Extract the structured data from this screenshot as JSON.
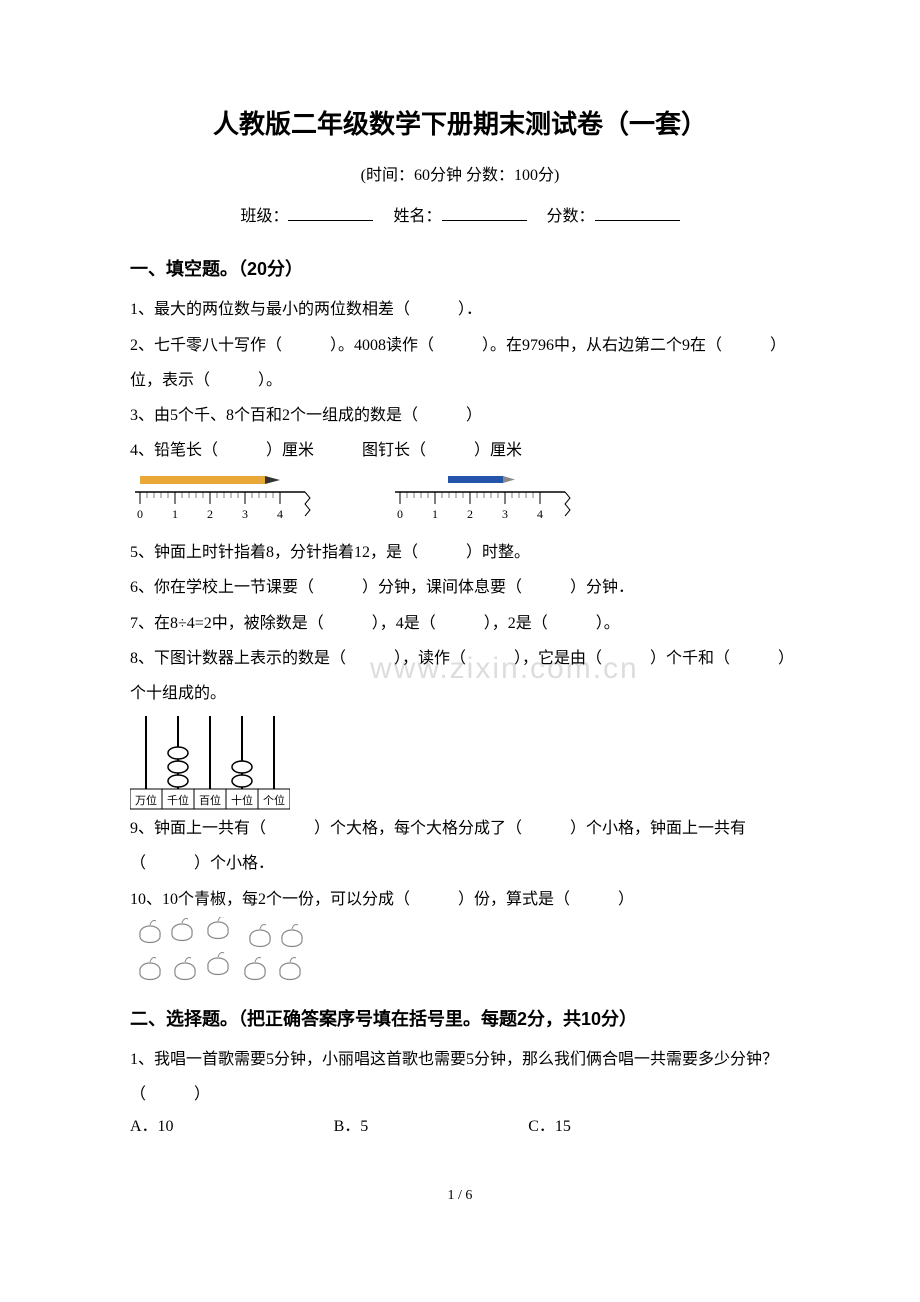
{
  "title": "人教版二年级数学下册期末测试卷（一套）",
  "subtitle": "(时间：60分钟    分数：100分)",
  "info": {
    "class_label": "班级：",
    "name_label": "姓名：",
    "score_label": "分数："
  },
  "section1": {
    "header": "一、填空题。（20分）",
    "q1": "1、最大的两位数与最小的两位数相差（　　　）．",
    "q2": "2、七千零八十写作（　　　）。4008读作（　　　）。在9796中，从右边第二个9在（　　　）位，表示（　　　）。",
    "q3": "3、由5个千、8个百和2个一组成的数是（　　　）",
    "q4": "4、铅笔长（　　　）厘米　　　图钉长（　　　）厘米",
    "q5": "5、钟面上时针指着8，分针指着12，是（　　　）时整。",
    "q6": "6、你在学校上一节课要（　　　）分钟，课间体息要（　　　）分钟．",
    "q7": "7、在8÷4=2中，被除数是（　　　），4是（　　　），2是（　　　）。",
    "q8": "8、下图计数器上表示的数是（　　　），读作（　　　），它是由（　　　）个千和（　　　）个十组成的。",
    "q9": "9、钟面上一共有（　　　）个大格，每个大格分成了（　　　）个小格，钟面上一共有（　　　）个小格．",
    "q10": "10、10个青椒，每2个一份，可以分成（　　　）份，算式是（　　　）"
  },
  "section2": {
    "header": "二、选择题。（把正确答案序号填在括号里。每题2分，共10分）",
    "q1": "1、我唱一首歌需要5分钟，小丽唱这首歌也需要5分钟，那么我们俩合唱一共需要多少分钟？（　　　）",
    "optA": "A．10",
    "optB": "B．5",
    "optC": "C．15"
  },
  "ruler": {
    "ticks": [
      "0",
      "1",
      "2",
      "3",
      "4"
    ],
    "pencil_color": "#e8a838",
    "tip_color": "#333333",
    "pin_color": "#2455aa",
    "ruler_width": 200,
    "ruler_height": 55
  },
  "abacus": {
    "labels": [
      "万位",
      "千位",
      "百位",
      "十位",
      "个位"
    ],
    "beads": [
      0,
      3,
      0,
      2,
      0
    ],
    "width": 160,
    "height": 100
  },
  "peppers": {
    "count": 10,
    "color": "#888888"
  },
  "watermark": "www.zixin.com.cn",
  "footer": "1 / 6",
  "colors": {
    "text": "#000000",
    "bg": "#ffffff",
    "watermark": "#dddddd"
  }
}
